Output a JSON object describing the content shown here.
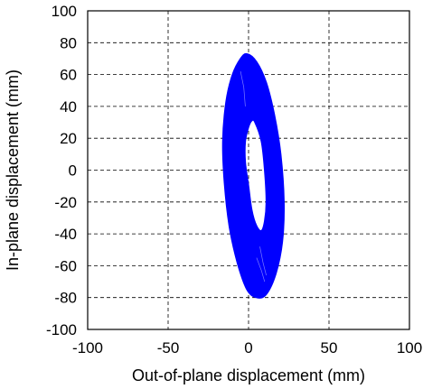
{
  "chart_data": {
    "type": "scatter",
    "title": "",
    "xlabel": "Out-of-plane displacement (mm)",
    "ylabel": "In-plane displacement (mm)",
    "xlim": [
      -100,
      100
    ],
    "ylim": [
      -100,
      100
    ],
    "xticks": [
      -100,
      -50,
      0,
      50,
      100
    ],
    "yticks": [
      -100,
      -80,
      -60,
      -40,
      -20,
      0,
      20,
      40,
      60,
      80,
      100
    ],
    "xtick_labels": [
      "-100",
      "-50",
      "0",
      "50",
      "100"
    ],
    "ytick_labels": [
      "-100",
      "-80",
      "-60",
      "-40",
      "-20",
      "0",
      "20",
      "40",
      "60",
      "80",
      "100"
    ],
    "grid": true,
    "grid_style": "dashed",
    "legend": "none",
    "series_color": "#0000ff",
    "series": [
      {
        "description_shape": "filled elliptical orbit band (trajectory loops)",
        "outer_boundary": {
          "x": [
            -1,
            5,
            11,
            16,
            20,
            22,
            21,
            17,
            11,
            5,
            -1,
            -7,
            -12,
            -15,
            -16,
            -14,
            -10,
            -5,
            -1
          ],
          "y": [
            73,
            68,
            55,
            35,
            10,
            -20,
            -45,
            -65,
            -78,
            -80,
            -75,
            -58,
            -35,
            -8,
            18,
            43,
            60,
            70,
            73
          ]
        },
        "inner_boundary": {
          "x": [
            4,
            8,
            10,
            11,
            10,
            8,
            5,
            2,
            0,
            -2,
            -2,
            0,
            2,
            4
          ],
          "y": [
            30,
            18,
            0,
            -20,
            -32,
            -38,
            -35,
            -25,
            -10,
            5,
            18,
            27,
            31,
            30
          ]
        },
        "points_x": [],
        "points_y": []
      }
    ]
  }
}
